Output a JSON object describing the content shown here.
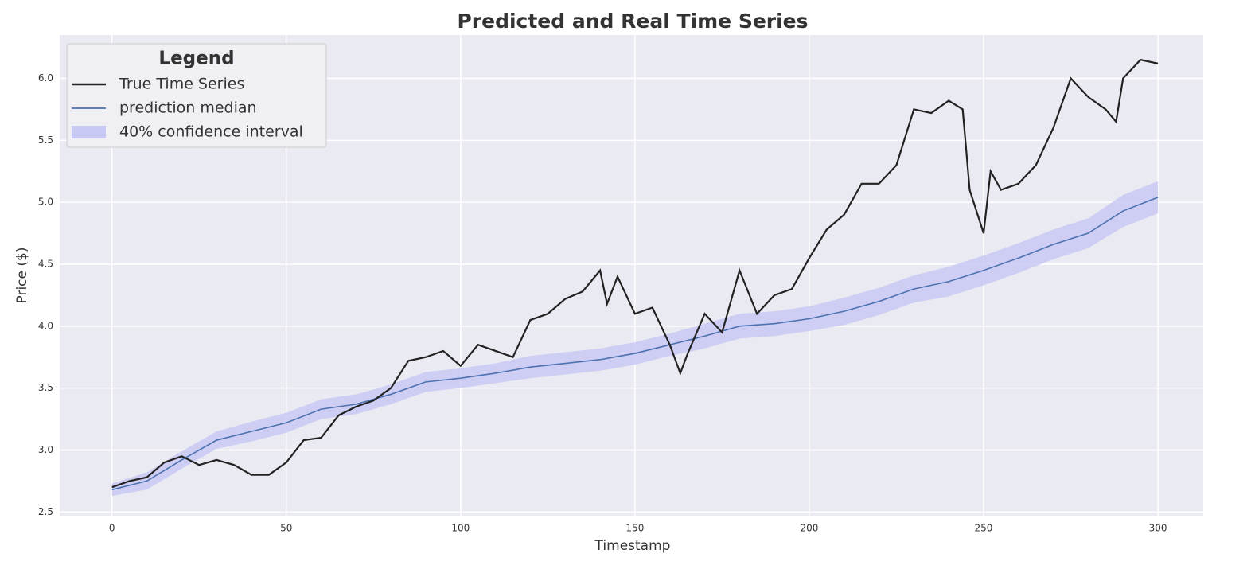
{
  "chart_data": {
    "type": "line",
    "title": "Predicted and Real Time Series",
    "x_label": "Timestamp",
    "y_label": "Price ($)",
    "legend_title": "Legend",
    "legend": "upper left",
    "grid": true,
    "xlim": [
      -15,
      313
    ],
    "ylim": [
      2.47,
      6.35
    ],
    "xticks": [
      0,
      50,
      100,
      150,
      200,
      250,
      300
    ],
    "yticks": [
      2.5,
      {
        "value": 3,
        "label": "3.0"
      },
      3.5,
      {
        "value": 4,
        "label": "4.0"
      },
      4.5,
      {
        "value": 5,
        "label": "5.0"
      },
      5.5,
      {
        "value": 6,
        "label": "6.0"
      }
    ],
    "series": [
      {
        "name": "True Time Series",
        "color": "#222222",
        "x": [
          0,
          5,
          10,
          15,
          20,
          25,
          30,
          35,
          40,
          45,
          50,
          55,
          60,
          65,
          70,
          75,
          80,
          85,
          90,
          95,
          100,
          105,
          110,
          115,
          120,
          125,
          130,
          135,
          140,
          142,
          145,
          150,
          155,
          160,
          163,
          165,
          170,
          175,
          180,
          185,
          190,
          195,
          200,
          205,
          210,
          215,
          220,
          225,
          230,
          235,
          240,
          244,
          246,
          250,
          252,
          255,
          260,
          265,
          270,
          275,
          280,
          285,
          288,
          290,
          295,
          300
        ],
        "values": [
          2.7,
          2.75,
          2.78,
          2.9,
          2.95,
          2.88,
          2.92,
          2.88,
          2.8,
          2.8,
          2.9,
          3.08,
          3.1,
          3.28,
          3.35,
          3.4,
          3.5,
          3.72,
          3.75,
          3.8,
          3.68,
          3.85,
          3.8,
          3.75,
          4.05,
          4.1,
          4.22,
          4.28,
          4.45,
          4.18,
          4.4,
          4.1,
          4.15,
          3.85,
          3.62,
          3.77,
          4.1,
          3.95,
          4.45,
          4.1,
          4.25,
          4.3,
          4.55,
          4.78,
          4.9,
          5.15,
          5.15,
          5.3,
          5.75,
          5.72,
          5.82,
          5.75,
          5.1,
          4.75,
          5.25,
          5.1,
          5.15,
          5.3,
          5.6,
          6.0,
          5.85,
          5.75,
          5.65,
          6.0,
          6.15,
          6.12
        ]
      },
      {
        "name": "prediction median",
        "color": "#4c72b0",
        "x": [
          0,
          10,
          20,
          30,
          40,
          50,
          60,
          70,
          80,
          90,
          100,
          110,
          120,
          130,
          140,
          150,
          160,
          170,
          180,
          190,
          200,
          210,
          220,
          230,
          240,
          250,
          260,
          270,
          280,
          290,
          300
        ],
        "values": [
          2.68,
          2.75,
          2.92,
          3.08,
          3.15,
          3.22,
          3.33,
          3.37,
          3.45,
          3.55,
          3.58,
          3.62,
          3.67,
          3.7,
          3.73,
          3.78,
          3.85,
          3.92,
          4.0,
          4.02,
          4.06,
          4.12,
          4.2,
          4.3,
          4.36,
          4.45,
          4.55,
          4.66,
          4.75,
          4.93,
          5.04
        ]
      }
    ],
    "band": {
      "name": "40% confidence interval",
      "color": "#c9c9f5",
      "x": [
        0,
        10,
        20,
        30,
        40,
        50,
        60,
        70,
        80,
        90,
        100,
        110,
        120,
        130,
        140,
        150,
        160,
        170,
        180,
        190,
        200,
        210,
        220,
        230,
        240,
        250,
        260,
        270,
        280,
        290,
        300
      ],
      "upper": [
        2.73,
        2.82,
        2.99,
        3.15,
        3.23,
        3.3,
        3.41,
        3.45,
        3.53,
        3.63,
        3.66,
        3.7,
        3.76,
        3.79,
        3.82,
        3.87,
        3.94,
        4.02,
        4.1,
        4.12,
        4.16,
        4.23,
        4.31,
        4.41,
        4.48,
        4.57,
        4.67,
        4.78,
        4.87,
        5.06,
        5.17
      ],
      "lower": [
        2.63,
        2.68,
        2.85,
        3.01,
        3.07,
        3.14,
        3.25,
        3.29,
        3.37,
        3.47,
        3.5,
        3.54,
        3.58,
        3.61,
        3.64,
        3.69,
        3.76,
        3.82,
        3.9,
        3.92,
        3.96,
        4.01,
        4.09,
        4.19,
        4.24,
        4.33,
        4.43,
        4.54,
        4.63,
        4.8,
        4.91
      ]
    }
  }
}
